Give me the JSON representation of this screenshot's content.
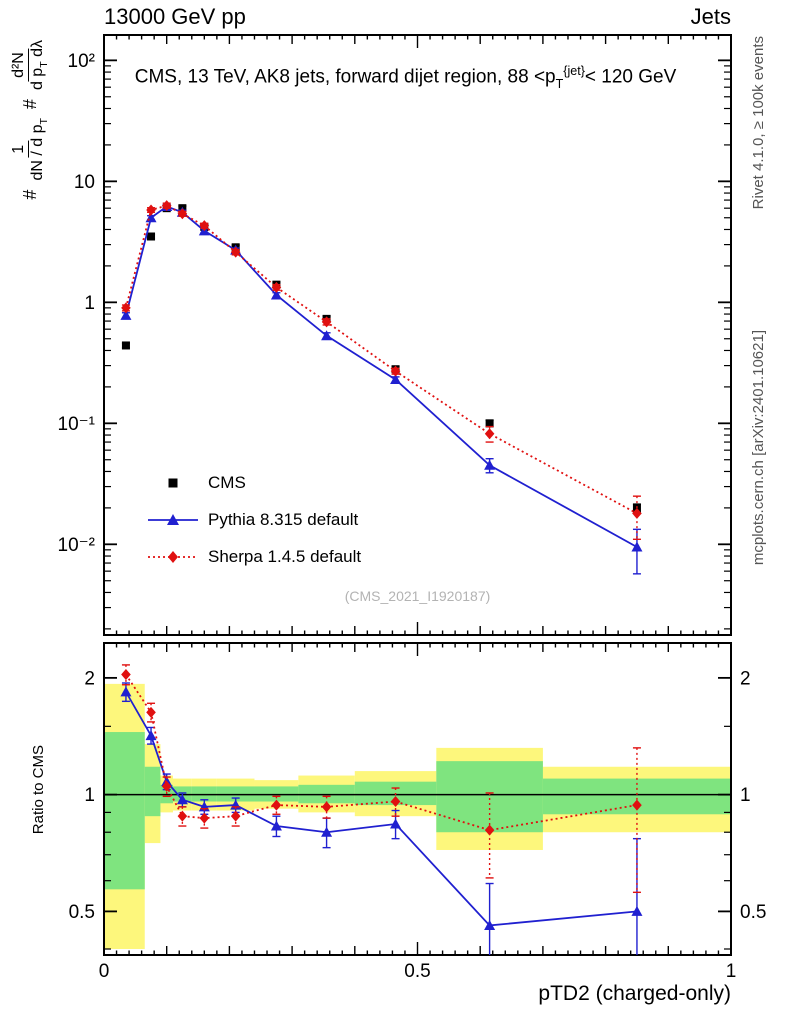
{
  "header": {
    "left": "13000 GeV pp",
    "right": "Jets"
  },
  "panel_title": {
    "pre": "CMS, 13 TeV, AK8 jets, forward dijet region, 88 <p",
    "sub": "T",
    "sup": "{jet}",
    "post": "< 120 GeV"
  },
  "watermark": "(CMS_2021_I1920187)",
  "side_notes": {
    "top": "Rivet 4.1.0, ≥ 100k events",
    "bottom": "mcplots.cern.ch [arXiv:2401.10621]"
  },
  "axes": {
    "x_title": "pTD2 (charged-only)",
    "ratio_label": "Ratio to CMS",
    "y_main_label": {
      "hash1": "#",
      "frac1_num": "1",
      "frac1_den_pre": "dN / d p",
      "frac1_den_sub": "T",
      "hash2": "#",
      "frac2_num": "d²N",
      "frac2_den_pre": "d p",
      "frac2_den_sub": "T",
      "frac2_den_post": " dλ"
    }
  },
  "chart_data": {
    "type": "line",
    "title": "CMS, 13 TeV, AK8 jets, forward dijet region, 88 <pT^{jet}< 120 GeV",
    "xlabel": "pTD2 (charged-only)",
    "xlim": [
      0,
      1
    ],
    "x_ticks": [
      {
        "v": 0,
        "label": "0"
      },
      {
        "v": 0.5,
        "label": "0.5"
      },
      {
        "v": 1,
        "label": "1"
      }
    ],
    "x": [
      0.035,
      0.075,
      0.1,
      0.125,
      0.16,
      0.21,
      0.275,
      0.355,
      0.465,
      0.615,
      0.85
    ],
    "main": {
      "ylog": true,
      "ylim": [
        0.00178,
        162
      ],
      "y_ticks": [
        {
          "v": 100,
          "label": "10²"
        },
        {
          "v": 10,
          "label": "10"
        },
        {
          "v": 1,
          "label": "1"
        },
        {
          "v": 0.1,
          "label": "10⁻¹"
        },
        {
          "v": 0.01,
          "label": "10⁻²"
        }
      ],
      "series": [
        {
          "name": "CMS",
          "color": "#000000",
          "marker": "square",
          "line": "none",
          "y": [
            0.44,
            3.5,
            6.0,
            6.0,
            4.2,
            2.85,
            1.4,
            0.73,
            0.28,
            0.1,
            0.02
          ],
          "yerr": [
            0.02,
            0.15,
            0.25,
            0.25,
            0.18,
            0.12,
            0.07,
            0.04,
            0.015,
            0.006,
            0.0015
          ]
        },
        {
          "name": "Pythia 8.315 default",
          "color": "#2020d0",
          "marker": "triangle",
          "line": "solid",
          "y": [
            0.78,
            5.0,
            6.2,
            5.55,
            3.9,
            2.7,
            1.15,
            0.53,
            0.23,
            0.045,
            0.0095
          ],
          "yerr": [
            0.04,
            0.2,
            0.25,
            0.22,
            0.16,
            0.11,
            0.05,
            0.03,
            0.012,
            0.006,
            0.0038
          ]
        },
        {
          "name": "Sherpa 1.4.5 default",
          "color": "#e01010",
          "marker": "diamond",
          "line": "dotted",
          "y": [
            0.9,
            5.8,
            6.3,
            5.4,
            4.3,
            2.6,
            1.33,
            0.69,
            0.27,
            0.082,
            0.018
          ],
          "yerr": [
            0.05,
            0.25,
            0.3,
            0.25,
            0.2,
            0.13,
            0.07,
            0.04,
            0.015,
            0.012,
            0.007
          ]
        }
      ]
    },
    "ratio": {
      "ylog": true,
      "ylim": [
        0.386,
        2.46
      ],
      "y_ticks": [
        {
          "v": 2,
          "label": "2"
        },
        {
          "v": 1,
          "label": "1"
        },
        {
          "v": 0.5,
          "label": "0.5"
        }
      ],
      "y_minor_ticks": [
        0.4,
        0.6,
        0.7,
        0.8,
        0.9,
        1.5
      ],
      "reference_line": 1,
      "band_colors": {
        "outer": "#fdf77c",
        "inner": "#7fe47f"
      },
      "bands": [
        {
          "x0": 0.0,
          "x1": 0.065,
          "outer_lo": 0.4,
          "outer_hi": 1.93,
          "inner_lo": 0.57,
          "inner_hi": 1.45
        },
        {
          "x0": 0.065,
          "x1": 0.09,
          "outer_lo": 0.75,
          "outer_hi": 1.35,
          "inner_lo": 0.88,
          "inner_hi": 1.18
        },
        {
          "x0": 0.09,
          "x1": 0.11,
          "outer_lo": 0.9,
          "outer_hi": 1.12,
          "inner_lo": 0.95,
          "inner_hi": 1.06
        },
        {
          "x0": 0.11,
          "x1": 0.14,
          "outer_lo": 0.91,
          "outer_hi": 1.1,
          "inner_lo": 0.96,
          "inner_hi": 1.05
        },
        {
          "x0": 0.14,
          "x1": 0.18,
          "outer_lo": 0.91,
          "outer_hi": 1.1,
          "inner_lo": 0.96,
          "inner_hi": 1.05
        },
        {
          "x0": 0.18,
          "x1": 0.24,
          "outer_lo": 0.91,
          "outer_hi": 1.1,
          "inner_lo": 0.96,
          "inner_hi": 1.05
        },
        {
          "x0": 0.24,
          "x1": 0.31,
          "outer_lo": 0.92,
          "outer_hi": 1.09,
          "inner_lo": 0.96,
          "inner_hi": 1.05
        },
        {
          "x0": 0.31,
          "x1": 0.4,
          "outer_lo": 0.9,
          "outer_hi": 1.12,
          "inner_lo": 0.95,
          "inner_hi": 1.06
        },
        {
          "x0": 0.4,
          "x1": 0.53,
          "outer_lo": 0.88,
          "outer_hi": 1.15,
          "inner_lo": 0.94,
          "inner_hi": 1.08
        },
        {
          "x0": 0.53,
          "x1": 0.7,
          "outer_lo": 0.72,
          "outer_hi": 1.32,
          "inner_lo": 0.8,
          "inner_hi": 1.22
        },
        {
          "x0": 0.7,
          "x1": 1.0,
          "outer_lo": 0.8,
          "outer_hi": 1.18,
          "inner_lo": 0.89,
          "inner_hi": 1.1
        }
      ],
      "series": [
        {
          "name": "Pythia 8.315 default",
          "color": "#2020d0",
          "marker": "triangle",
          "line": "solid",
          "y": [
            1.84,
            1.42,
            1.08,
            0.97,
            0.93,
            0.94,
            0.83,
            0.8,
            0.84,
            0.46,
            0.5
          ],
          "yerr": [
            0.1,
            0.07,
            0.05,
            0.04,
            0.04,
            0.04,
            0.05,
            0.07,
            0.07,
            0.13,
            0.27
          ]
        },
        {
          "name": "Sherpa 1.4.5 default",
          "color": "#e01010",
          "marker": "diamond",
          "line": "dotted",
          "y": [
            2.04,
            1.63,
            1.05,
            0.88,
            0.87,
            0.88,
            0.94,
            0.93,
            0.96,
            0.81,
            0.94
          ],
          "yerr": [
            0.12,
            0.09,
            0.06,
            0.05,
            0.05,
            0.05,
            0.05,
            0.06,
            0.08,
            0.2,
            0.38
          ]
        }
      ]
    }
  }
}
